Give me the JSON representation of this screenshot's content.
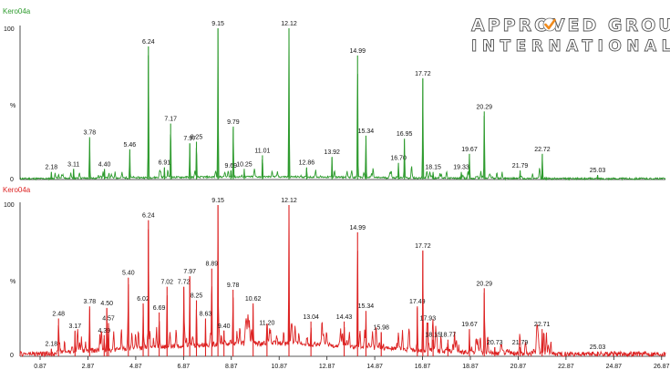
{
  "chart_data": [
    {
      "type": "line",
      "trace_name": "Kero04a",
      "color": "#2e9b2e",
      "ylabel": "%",
      "y_ticks": [
        "0",
        "100"
      ],
      "ylim": [
        0,
        100
      ],
      "xlim": [
        0.87,
        27.87
      ],
      "grid": false,
      "peaks": [
        {
          "rt": 2.18,
          "label": "2.18",
          "height": 5
        },
        {
          "rt": 3.11,
          "label": "3.11",
          "height": 7
        },
        {
          "rt": 3.78,
          "label": "3.78",
          "height": 28
        },
        {
          "rt": 4.4,
          "label": "4.40",
          "height": 7
        },
        {
          "rt": 5.46,
          "label": "5.46",
          "height": 20
        },
        {
          "rt": 6.24,
          "label": "6.24",
          "height": 88
        },
        {
          "rt": 6.91,
          "label": "6.91",
          "height": 8
        },
        {
          "rt": 7.17,
          "label": "7.17",
          "height": 37
        },
        {
          "rt": 7.97,
          "label": "7.97",
          "height": 24
        },
        {
          "rt": 8.25,
          "label": "8.25",
          "height": 25
        },
        {
          "rt": 9.15,
          "label": "9.15",
          "height": 100
        },
        {
          "rt": 9.69,
          "label": "9.69",
          "height": 6
        },
        {
          "rt": 9.79,
          "label": "9.79",
          "height": 35
        },
        {
          "rt": 10.25,
          "label": "10.25",
          "height": 7
        },
        {
          "rt": 11.01,
          "label": "11.01",
          "height": 16
        },
        {
          "rt": 12.12,
          "label": "12.12",
          "height": 100
        },
        {
          "rt": 12.86,
          "label": "12.86",
          "height": 8
        },
        {
          "rt": 13.92,
          "label": "13.92",
          "height": 15
        },
        {
          "rt": 14.99,
          "label": "14.99",
          "height": 82
        },
        {
          "rt": 15.34,
          "label": "15.34",
          "height": 29
        },
        {
          "rt": 16.7,
          "label": "16.70",
          "height": 11
        },
        {
          "rt": 16.95,
          "label": "16.95",
          "height": 27
        },
        {
          "rt": 17.72,
          "label": "17.72",
          "height": 67
        },
        {
          "rt": 18.15,
          "label": "18.15",
          "height": 5
        },
        {
          "rt": 19.33,
          "label": "19.33",
          "height": 5
        },
        {
          "rt": 19.67,
          "label": "19.67",
          "height": 17
        },
        {
          "rt": 20.29,
          "label": "20.29",
          "height": 45
        },
        {
          "rt": 21.79,
          "label": "21.79",
          "height": 6
        },
        {
          "rt": 22.72,
          "label": "22.72",
          "height": 17
        },
        {
          "rt": 25.03,
          "label": "25.03",
          "height": 3
        }
      ]
    },
    {
      "type": "line",
      "trace_name": "Kero04a",
      "color": "#dd2222",
      "ylabel": "%",
      "y_ticks": [
        "0",
        "100"
      ],
      "ylim": [
        0,
        100
      ],
      "xlim": [
        0.87,
        27.87
      ],
      "xlabel": "",
      "x_ticks": [
        "0.87",
        "2.87",
        "4.87",
        "6.87",
        "8.87",
        "10.87",
        "12.87",
        "14.87",
        "16.87",
        "18.87",
        "20.87",
        "22.87",
        "24.87",
        "26.87"
      ],
      "grid": false,
      "peaks": [
        {
          "rt": 2.18,
          "label": "2.18",
          "height": 5
        },
        {
          "rt": 2.48,
          "label": "2.48",
          "height": 25
        },
        {
          "rt": 3.17,
          "label": "3.17",
          "height": 17
        },
        {
          "rt": 3.78,
          "label": "3.78",
          "height": 33
        },
        {
          "rt": 4.39,
          "label": "4.39",
          "height": 14
        },
        {
          "rt": 4.5,
          "label": "4.50",
          "height": 32
        },
        {
          "rt": 4.57,
          "label": "4.57",
          "height": 22
        },
        {
          "rt": 5.4,
          "label": "5.40",
          "height": 52
        },
        {
          "rt": 6.02,
          "label": "6.02",
          "height": 35
        },
        {
          "rt": 6.24,
          "label": "6.24",
          "height": 90
        },
        {
          "rt": 6.69,
          "label": "6.69",
          "height": 29
        },
        {
          "rt": 7.02,
          "label": "7.02",
          "height": 46
        },
        {
          "rt": 7.72,
          "label": "7.72",
          "height": 46
        },
        {
          "rt": 7.97,
          "label": "7.97",
          "height": 53
        },
        {
          "rt": 8.25,
          "label": "8.25",
          "height": 37
        },
        {
          "rt": 8.63,
          "label": "8.63",
          "height": 25
        },
        {
          "rt": 8.89,
          "label": "8.89",
          "height": 58
        },
        {
          "rt": 9.15,
          "label": "9.15",
          "height": 100
        },
        {
          "rt": 9.4,
          "label": "9.40",
          "height": 17
        },
        {
          "rt": 9.78,
          "label": "9.78",
          "height": 44
        },
        {
          "rt": 10.62,
          "label": "10.62",
          "height": 35
        },
        {
          "rt": 11.2,
          "label": "11.20",
          "height": 19
        },
        {
          "rt": 12.12,
          "label": "12.12",
          "height": 100
        },
        {
          "rt": 13.04,
          "label": "13.04",
          "height": 23
        },
        {
          "rt": 14.43,
          "label": "14.43",
          "height": 23
        },
        {
          "rt": 14.99,
          "label": "14.99",
          "height": 82
        },
        {
          "rt": 15.34,
          "label": "15.34",
          "height": 30
        },
        {
          "rt": 15.98,
          "label": "15.98",
          "height": 16
        },
        {
          "rt": 17.49,
          "label": "17.49",
          "height": 33
        },
        {
          "rt": 17.72,
          "label": "17.72",
          "height": 70
        },
        {
          "rt": 17.93,
          "label": "17.93",
          "height": 22
        },
        {
          "rt": 18.15,
          "label": "18.15",
          "height": 11
        },
        {
          "rt": 18.77,
          "label": "18.77",
          "height": 11
        },
        {
          "rt": 19.67,
          "label": "19.67",
          "height": 18
        },
        {
          "rt": 20.29,
          "label": "20.29",
          "height": 45
        },
        {
          "rt": 20.73,
          "label": "20.73",
          "height": 6
        },
        {
          "rt": 21.79,
          "label": "21.79",
          "height": 6
        },
        {
          "rt": 22.71,
          "label": "22.71",
          "height": 18
        },
        {
          "rt": 25.03,
          "label": "25.03",
          "height": 3
        }
      ]
    }
  ],
  "logo": {
    "line1": "APPROVED GROUP",
    "line2": "INTERNATIONAL",
    "check_color": "#f08a1c"
  }
}
